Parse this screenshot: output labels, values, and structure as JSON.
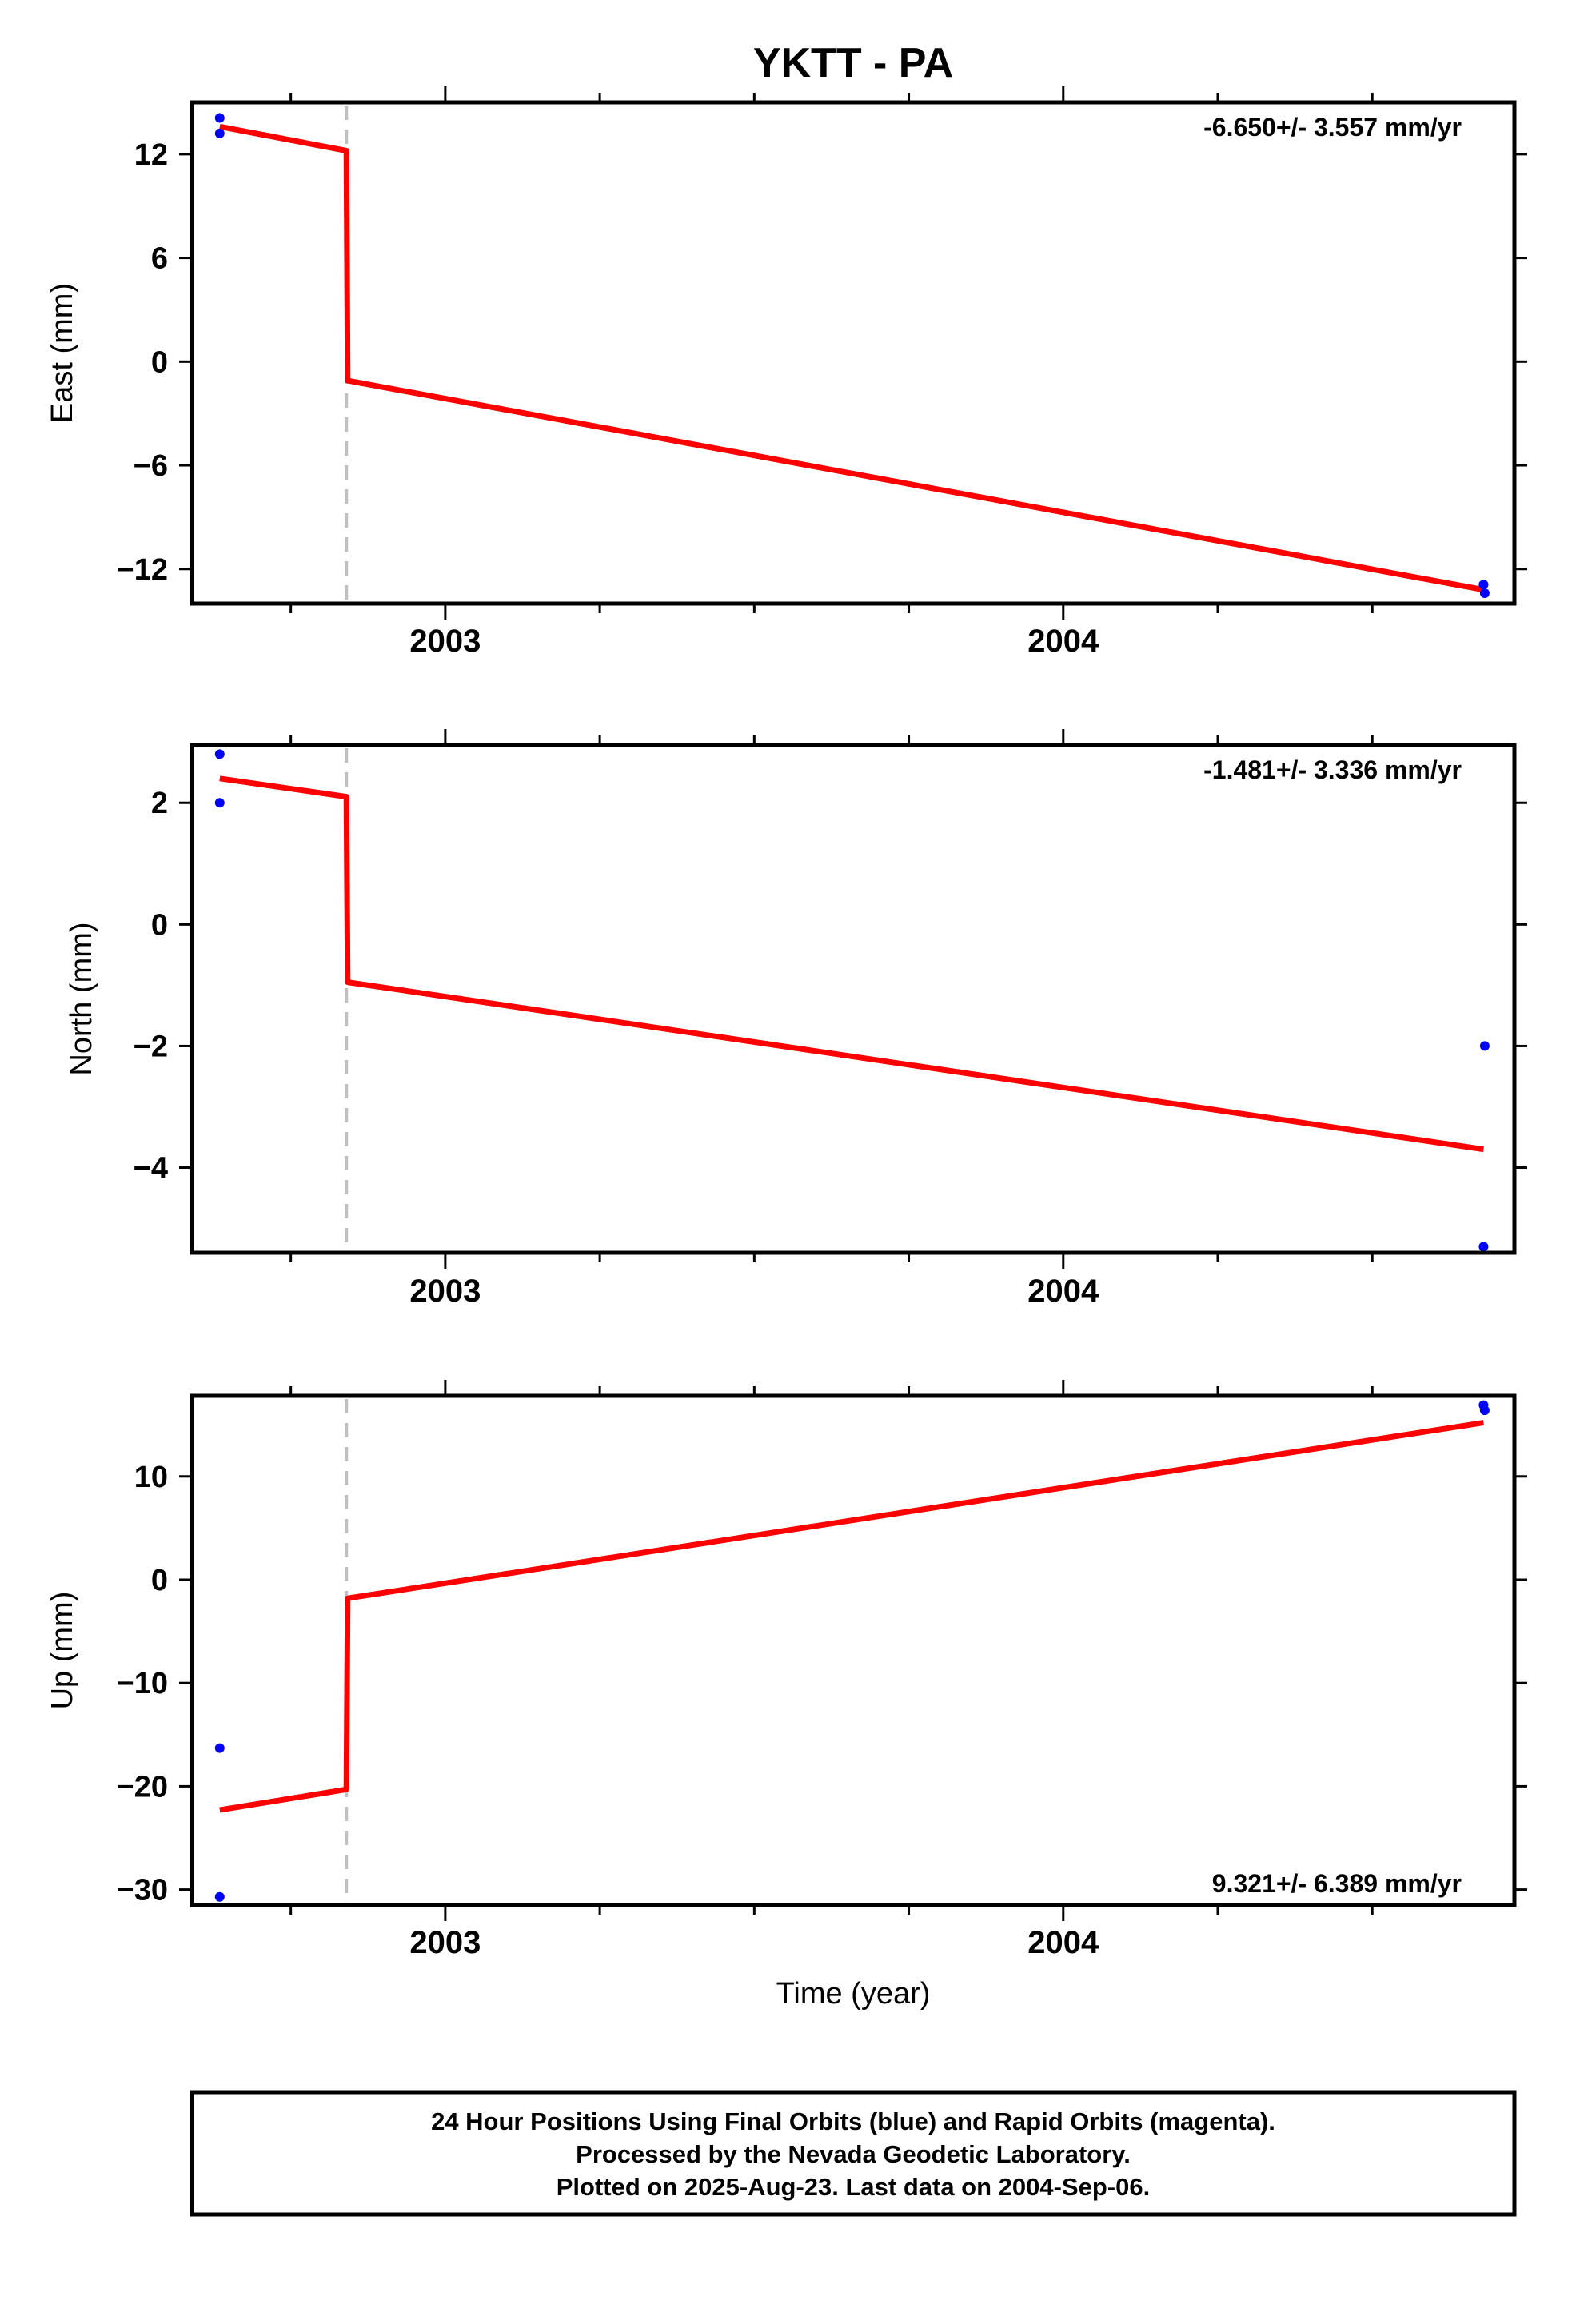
{
  "title": "YKTT - PA",
  "xlabel": "Time (year)",
  "colors": {
    "frame": "#000000",
    "data_points": "#0000ff",
    "model_line": "#ff0000",
    "offset_line": "#c0c0c0"
  },
  "footer": {
    "lines": [
      "24 Hour Positions Using Final Orbits (blue) and Rapid Orbits (magenta).",
      "Processed by the Nevada Geodetic Laboratory.",
      "Plotted on 2025-Aug-23. Last data on 2004-Sep-06."
    ]
  },
  "chart_data": [
    {
      "type": "scatter",
      "panel": "east",
      "ylabel": "East (mm)",
      "xlim": [
        2002.59,
        2004.73
      ],
      "ylim": [
        -14,
        15
      ],
      "yticks": [
        -12,
        -6,
        0,
        6,
        12
      ],
      "xticks_labeled": [
        2003,
        2004
      ],
      "xticks_minor": [
        2002.75,
        2003.25,
        2003.5,
        2003.75,
        2004.25,
        2004.5
      ],
      "rate_label": "-6.650+/- 3.557 mm/yr",
      "rate_label_position": "top-right",
      "offset_epoch": 2002.84,
      "points": [
        [
          2002.635,
          14.1
        ],
        [
          2002.635,
          13.2
        ],
        [
          2004.68,
          -12.9
        ],
        [
          2004.682,
          -13.4
        ]
      ],
      "model": [
        [
          2002.635,
          13.6
        ],
        [
          2002.84,
          12.2
        ],
        [
          2002.842,
          -1.1
        ],
        [
          2004.68,
          -13.2
        ]
      ]
    },
    {
      "type": "scatter",
      "panel": "north",
      "ylabel": "North (mm)",
      "xlim": [
        2002.59,
        2004.73
      ],
      "ylim": [
        -5.4,
        2.95
      ],
      "yticks": [
        -4,
        -2,
        0,
        2
      ],
      "xticks_labeled": [
        2003,
        2004
      ],
      "xticks_minor": [
        2002.75,
        2003.25,
        2003.5,
        2003.75,
        2004.25,
        2004.5
      ],
      "rate_label": "-1.481+/- 3.336 mm/yr",
      "rate_label_position": "top-right",
      "offset_epoch": 2002.84,
      "points": [
        [
          2002.635,
          2.8
        ],
        [
          2002.635,
          2.0
        ],
        [
          2004.682,
          -2.0
        ],
        [
          2004.68,
          -5.3
        ]
      ],
      "model": [
        [
          2002.635,
          2.4
        ],
        [
          2002.84,
          2.1
        ],
        [
          2002.842,
          -0.95
        ],
        [
          2004.68,
          -3.7
        ]
      ]
    },
    {
      "type": "scatter",
      "panel": "up",
      "ylabel": "Up (mm)",
      "xlim": [
        2002.59,
        2004.73
      ],
      "ylim": [
        -31.5,
        17.8
      ],
      "yticks": [
        -30,
        -20,
        -10,
        0,
        10
      ],
      "xticks_labeled": [
        2003,
        2004
      ],
      "xticks_minor": [
        2002.75,
        2003.25,
        2003.5,
        2003.75,
        2004.25,
        2004.5
      ],
      "rate_label": "9.321+/- 6.389 mm/yr",
      "rate_label_position": "bottom-right",
      "offset_epoch": 2002.84,
      "points": [
        [
          2002.635,
          -16.3
        ],
        [
          2002.635,
          -30.7
        ],
        [
          2004.68,
          16.9
        ],
        [
          2004.682,
          16.4
        ]
      ],
      "model": [
        [
          2002.635,
          -22.3
        ],
        [
          2002.84,
          -20.3
        ],
        [
          2002.842,
          -1.8
        ],
        [
          2004.68,
          15.2
        ]
      ]
    }
  ]
}
